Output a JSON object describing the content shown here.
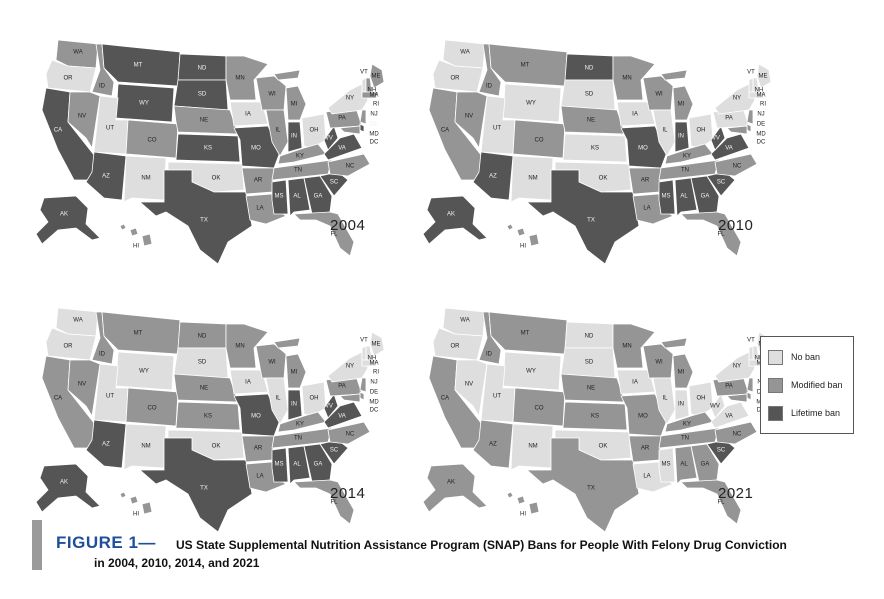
{
  "colors": {
    "no_ban": "#dedede",
    "modified_ban": "#959595",
    "lifetime_ban": "#555555"
  },
  "panels": [
    {
      "year": "2004",
      "states": {
        "WA": "modified",
        "OR": "none",
        "CA": "lifetime",
        "NV": "modified",
        "ID": "modified",
        "MT": "lifetime",
        "WY": "lifetime",
        "UT": "none",
        "CO": "modified",
        "AZ": "lifetime",
        "NM": "none",
        "ND": "lifetime",
        "SD": "lifetime",
        "NE": "modified",
        "KS": "lifetime",
        "OK": "none",
        "TX": "lifetime",
        "MN": "modified",
        "IA": "none",
        "MO": "lifetime",
        "AR": "modified",
        "LA": "modified",
        "WI": "modified",
        "IL": "modified",
        "MI": "modified",
        "IN": "lifetime",
        "OH": "none",
        "KY": "modified",
        "TN": "modified",
        "MS": "lifetime",
        "AL": "lifetime",
        "GA": "lifetime",
        "FL": "modified",
        "SC": "lifetime",
        "NC": "modified",
        "VA": "lifetime",
        "WV": "lifetime",
        "PA": "modified",
        "NY": "none",
        "ME": "modified",
        "VT": "none",
        "NH": "modified",
        "MA": "modified",
        "NJ": "modified",
        "DE": "lifetime",
        "MD": "modified",
        "AK": "lifetime",
        "HI": "modified"
      }
    },
    {
      "year": "2010",
      "states": {
        "WA": "none",
        "OR": "none",
        "CA": "modified",
        "NV": "modified",
        "ID": "modified",
        "MT": "modified",
        "WY": "none",
        "UT": "none",
        "CO": "modified",
        "AZ": "lifetime",
        "NM": "none",
        "ND": "lifetime",
        "SD": "none",
        "NE": "modified",
        "KS": "none",
        "OK": "none",
        "TX": "lifetime",
        "MN": "modified",
        "IA": "none",
        "MO": "lifetime",
        "AR": "modified",
        "LA": "modified",
        "WI": "modified",
        "IL": "none",
        "MI": "modified",
        "IN": "lifetime",
        "OH": "none",
        "KY": "modified",
        "TN": "modified",
        "MS": "lifetime",
        "AL": "lifetime",
        "GA": "lifetime",
        "FL": "modified",
        "SC": "lifetime",
        "NC": "modified",
        "VA": "lifetime",
        "WV": "lifetime",
        "PA": "none",
        "NY": "none",
        "ME": "none",
        "VT": "none",
        "NH": "none",
        "MA": "none",
        "NJ": "modified",
        "DE": "modified",
        "MD": "modified",
        "AK": "lifetime",
        "HI": "modified"
      }
    },
    {
      "year": "2014",
      "states": {
        "WA": "none",
        "OR": "none",
        "CA": "modified",
        "NV": "modified",
        "ID": "modified",
        "MT": "modified",
        "WY": "none",
        "UT": "none",
        "CO": "modified",
        "AZ": "lifetime",
        "NM": "none",
        "ND": "modified",
        "SD": "none",
        "NE": "modified",
        "KS": "modified",
        "OK": "none",
        "TX": "lifetime",
        "MN": "modified",
        "IA": "none",
        "MO": "lifetime",
        "AR": "modified",
        "LA": "modified",
        "WI": "modified",
        "IL": "none",
        "MI": "modified",
        "IN": "lifetime",
        "OH": "none",
        "KY": "modified",
        "TN": "modified",
        "MS": "lifetime",
        "AL": "lifetime",
        "GA": "lifetime",
        "FL": "modified",
        "SC": "lifetime",
        "NC": "modified",
        "VA": "lifetime",
        "WV": "lifetime",
        "PA": "modified",
        "NY": "none",
        "ME": "none",
        "VT": "none",
        "NH": "none",
        "MA": "none",
        "NJ": "modified",
        "DE": "modified",
        "MD": "modified",
        "AK": "lifetime",
        "HI": "modified"
      }
    },
    {
      "year": "2021",
      "states": {
        "WA": "none",
        "OR": "none",
        "CA": "modified",
        "NV": "none",
        "ID": "modified",
        "MT": "modified",
        "WY": "none",
        "UT": "none",
        "CO": "modified",
        "AZ": "modified",
        "NM": "none",
        "ND": "none",
        "SD": "none",
        "NE": "modified",
        "KS": "modified",
        "OK": "none",
        "TX": "modified",
        "MN": "modified",
        "IA": "none",
        "MO": "modified",
        "AR": "modified",
        "LA": "none",
        "WI": "modified",
        "IL": "none",
        "MI": "modified",
        "IN": "none",
        "OH": "none",
        "KY": "modified",
        "TN": "modified",
        "MS": "none",
        "AL": "modified",
        "GA": "modified",
        "FL": "modified",
        "SC": "lifetime",
        "NC": "modified",
        "VA": "none",
        "WV": "none",
        "PA": "modified",
        "NY": "none",
        "ME": "none",
        "VT": "none",
        "NH": "none",
        "MA": "none",
        "NJ": "modified",
        "DE": "modified",
        "MD": "modified",
        "AK": "modified",
        "HI": "modified"
      }
    }
  ],
  "legend": [
    {
      "key": "none",
      "label": "No ban"
    },
    {
      "key": "modified",
      "label": "Modified ban"
    },
    {
      "key": "lifetime",
      "label": "Lifetime ban"
    }
  ],
  "caption": {
    "label": "FIGURE 1—",
    "text_line1": "US State Supplemental Nutrition Assistance Program (SNAP) Bans for People With Felony Drug Conviction",
    "text_line2": "in 2004, 2010, 2014, and 2021"
  },
  "extra_labels": [
    "RI",
    "DC"
  ]
}
